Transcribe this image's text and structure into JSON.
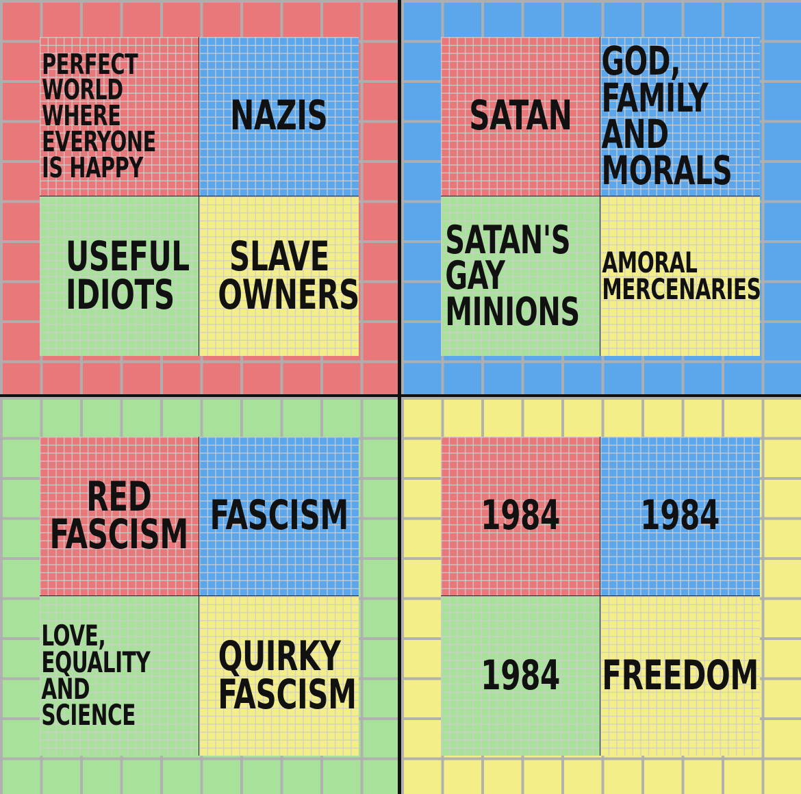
{
  "colors": {
    "red": "#e8787a",
    "blue": "#5ca7ec",
    "green": "#a8e29a",
    "yellow": "#f4ee88",
    "line": "#111111"
  },
  "quadrants": {
    "top_left": {
      "bg": "red",
      "cells": {
        "red": "PERFECT WORLD WHERE EVERYONE IS HAPPY",
        "blue": "NAZIS",
        "green": "USEFUL IDIOTS",
        "yellow": "SLAVE OWNERS"
      }
    },
    "top_right": {
      "bg": "blue",
      "cells": {
        "red": "SATAN",
        "blue": "GOD, FAMILY AND MORALS",
        "green": "SATAN'S GAY MINIONS",
        "yellow": "AMORAL MERCENARIES"
      }
    },
    "bottom_left": {
      "bg": "green",
      "cells": {
        "red": "RED FASCISM",
        "blue": "FASCISM",
        "green": "LOVE, EQUALITY AND SCIENCE",
        "yellow": "QUIRKY FASCISM"
      }
    },
    "bottom_right": {
      "bg": "yellow",
      "cells": {
        "red": "1984",
        "blue": "1984",
        "green": "1984",
        "yellow": "FREEDOM"
      }
    }
  }
}
